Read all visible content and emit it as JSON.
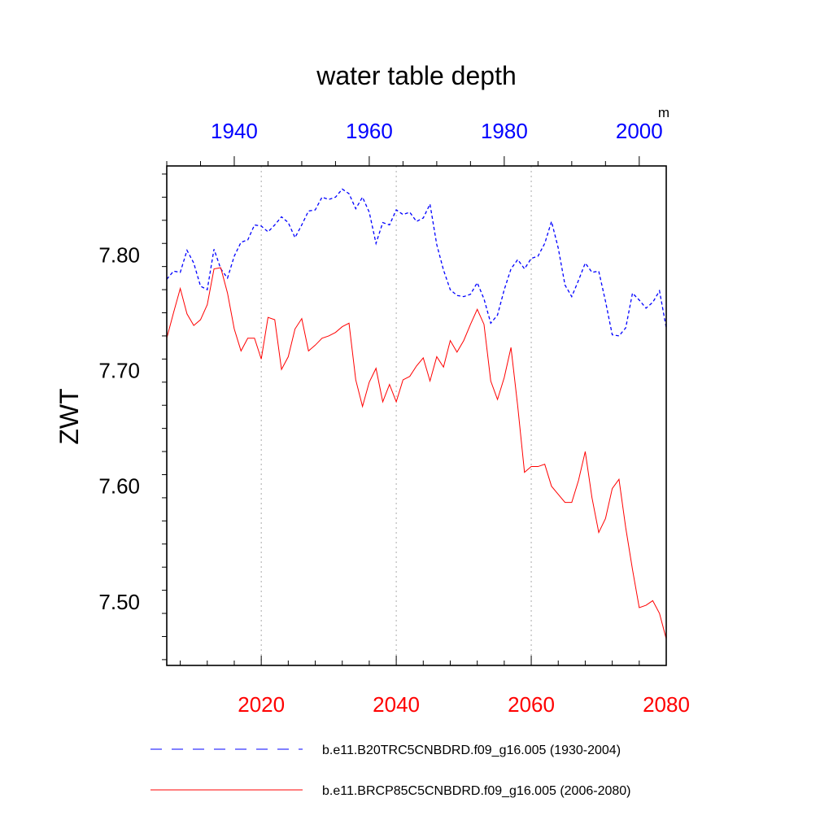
{
  "chart_data": {
    "type": "line",
    "title": "water table depth",
    "ylabel": "ZWT",
    "units": "m",
    "ylim": [
      7.445,
      7.877
    ],
    "y_ticks": [
      7.5,
      7.6,
      7.7,
      7.8
    ],
    "y_tick_labels": [
      "7.50",
      "7.60",
      "7.70",
      "7.80"
    ],
    "grid": "vertical dotted lines at bottom-axis major ticks",
    "legend_position": "below plot",
    "x_top": {
      "range": [
        1930,
        2004
      ],
      "ticks": [
        1940,
        1960,
        1980,
        2000
      ],
      "tick_labels": [
        "1940",
        "1960",
        "1980",
        "2000"
      ],
      "color": "#0000ff"
    },
    "x_bottom": {
      "range": [
        2006,
        2080
      ],
      "ticks": [
        2020,
        2040,
        2060,
        2080
      ],
      "tick_labels": [
        "2020",
        "2040",
        "2060",
        "2080"
      ],
      "color": "#ff0000"
    },
    "series": [
      {
        "name": "b.e11.B20TRC5CNBDRD.f09_g16.005 (1930-2004)",
        "axis": "top",
        "color": "#0000ff",
        "style": "dashed",
        "x_start": 1930,
        "values": [
          7.779,
          7.786,
          7.785,
          7.804,
          7.793,
          7.773,
          7.77,
          7.805,
          7.788,
          7.78,
          7.799,
          7.811,
          7.813,
          7.826,
          7.825,
          7.82,
          7.826,
          7.833,
          7.828,
          7.815,
          7.826,
          7.838,
          7.839,
          7.85,
          7.848,
          7.85,
          7.857,
          7.853,
          7.84,
          7.85,
          7.837,
          7.81,
          7.828,
          7.826,
          7.839,
          7.835,
          7.837,
          7.829,
          7.832,
          7.844,
          7.809,
          7.787,
          7.77,
          7.765,
          7.764,
          7.766,
          7.776,
          7.762,
          7.741,
          7.748,
          7.77,
          7.788,
          7.796,
          7.788,
          7.797,
          7.799,
          7.81,
          7.829,
          7.806,
          7.774,
          7.764,
          7.778,
          7.793,
          7.785,
          7.786,
          7.76,
          7.731,
          7.73,
          7.737,
          7.767,
          7.761,
          7.754,
          7.759,
          7.769,
          7.737
        ]
      },
      {
        "name": "b.e11.BRCP85C5CNBDRD.f09_g16.005 (2006-2080)",
        "axis": "bottom",
        "color": "#ff0000",
        "style": "solid",
        "x_start": 2006,
        "values": [
          7.728,
          7.75,
          7.771,
          7.749,
          7.739,
          7.744,
          7.757,
          7.788,
          7.789,
          7.767,
          7.736,
          7.717,
          7.728,
          7.728,
          7.71,
          7.746,
          7.744,
          7.701,
          7.712,
          7.736,
          7.745,
          7.717,
          7.722,
          7.728,
          7.73,
          7.733,
          7.738,
          7.741,
          7.692,
          7.669,
          7.69,
          7.702,
          7.673,
          7.688,
          7.673,
          7.692,
          7.695,
          7.704,
          7.711,
          7.691,
          7.712,
          7.703,
          7.726,
          7.716,
          7.726,
          7.74,
          7.753,
          7.74,
          7.691,
          7.675,
          7.694,
          7.72,
          7.669,
          7.612,
          7.617,
          7.617,
          7.619,
          7.6,
          7.593,
          7.586,
          7.586,
          7.605,
          7.63,
          7.59,
          7.56,
          7.572,
          7.598,
          7.606,
          7.564,
          7.528,
          7.495,
          7.497,
          7.501,
          7.49,
          7.468
        ]
      }
    ]
  }
}
